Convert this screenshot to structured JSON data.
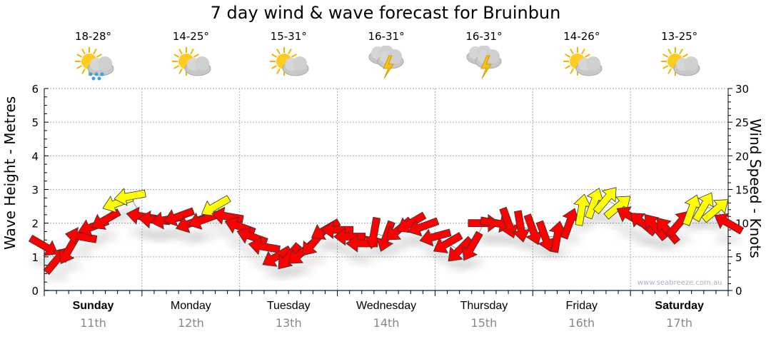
{
  "title": "7 day wind & wave forecast for Bruinbun",
  "days": [
    {
      "name": "Sunday",
      "date": "11th",
      "temp": "18-28°",
      "icon": "sun-cloud-rain-icon",
      "bold": true
    },
    {
      "name": "Monday",
      "date": "12th",
      "temp": "14-25°",
      "icon": "sun-cloud-icon",
      "bold": false
    },
    {
      "name": "Tuesday",
      "date": "13th",
      "temp": "15-31°",
      "icon": "sun-cloud-icon",
      "bold": false
    },
    {
      "name": "Wednesday",
      "date": "14th",
      "temp": "16-31°",
      "icon": "thunderstorm-icon",
      "bold": false
    },
    {
      "name": "Thursday",
      "date": "15th",
      "temp": "16-31°",
      "icon": "thunderstorm-icon",
      "bold": false
    },
    {
      "name": "Friday",
      "date": "16th",
      "temp": "14-26°",
      "icon": "sun-cloud-icon",
      "bold": false
    },
    {
      "name": "Saturday",
      "date": "17th",
      "temp": "13-25°",
      "icon": "sun-cloud-icon",
      "bold": true
    }
  ],
  "credit": "www.seabreeze.com.au",
  "colors": {
    "calm": "#ff0000",
    "strong": "#ffff00",
    "axis": "#1f4e79",
    "grid": "#aaaaaa"
  },
  "chart_data": {
    "type": "scatter",
    "title": "7 day wind & wave forecast for Bruinbun",
    "ylabel": "Wave Height - Metres",
    "y2label": "Wind Speed - Knots",
    "ylim": [
      0,
      6
    ],
    "y2lim": [
      0,
      30
    ],
    "yticks": [
      0,
      1,
      2,
      3,
      4,
      5,
      6
    ],
    "y2ticks": [
      0,
      5,
      10,
      15,
      20,
      25,
      30
    ],
    "x_unit": "hours from Sunday 00:00",
    "xlim": [
      0,
      168
    ],
    "strong_threshold_knots": 12,
    "wind": [
      {
        "h": 0,
        "kn": 6.6,
        "from": 300
      },
      {
        "h": 3,
        "kn": 4.5,
        "from": 220
      },
      {
        "h": 6,
        "kn": 6,
        "from": 30
      },
      {
        "h": 9,
        "kn": 8,
        "from": 100
      },
      {
        "h": 12,
        "kn": 9.5,
        "from": 70
      },
      {
        "h": 15,
        "kn": 10.5,
        "from": 60
      },
      {
        "h": 18,
        "kn": 13,
        "from": 70
      },
      {
        "h": 21,
        "kn": 14,
        "from": 80
      },
      {
        "h": 24,
        "kn": 11,
        "from": 100
      },
      {
        "h": 27,
        "kn": 10.5,
        "from": 95
      },
      {
        "h": 30,
        "kn": 10.5,
        "from": 80
      },
      {
        "h": 33,
        "kn": 11,
        "from": 70
      },
      {
        "h": 36,
        "kn": 10,
        "from": 70
      },
      {
        "h": 39,
        "kn": 10.5,
        "from": 70
      },
      {
        "h": 42,
        "kn": 12.5,
        "from": 60
      },
      {
        "h": 45,
        "kn": 11,
        "from": 100
      },
      {
        "h": 48,
        "kn": 9.5,
        "from": 110
      },
      {
        "h": 51,
        "kn": 8,
        "from": 110
      },
      {
        "h": 54,
        "kn": 6.5,
        "from": 100
      },
      {
        "h": 57,
        "kn": 5,
        "from": 60
      },
      {
        "h": 60,
        "kn": 5,
        "from": 40
      },
      {
        "h": 63,
        "kn": 5.5,
        "from": 50
      },
      {
        "h": 66,
        "kn": 7,
        "from": 40
      },
      {
        "h": 69,
        "kn": 9,
        "from": 60
      },
      {
        "h": 72,
        "kn": 9,
        "from": 90
      },
      {
        "h": 75,
        "kn": 8,
        "from": 90
      },
      {
        "h": 78,
        "kn": 7,
        "from": 90
      },
      {
        "h": 81,
        "kn": 8.5,
        "from": 10
      },
      {
        "h": 84,
        "kn": 8,
        "from": 20
      },
      {
        "h": 87,
        "kn": 9,
        "from": 50
      },
      {
        "h": 90,
        "kn": 10,
        "from": 60
      },
      {
        "h": 93,
        "kn": 9.5,
        "from": 70
      },
      {
        "h": 96,
        "kn": 8,
        "from": 75
      },
      {
        "h": 99,
        "kn": 7,
        "from": 60
      },
      {
        "h": 102,
        "kn": 6,
        "from": 45
      },
      {
        "h": 105,
        "kn": 6.5,
        "from": 30
      },
      {
        "h": 108,
        "kn": 10,
        "from": 270
      },
      {
        "h": 111,
        "kn": 10,
        "from": 280
      },
      {
        "h": 114,
        "kn": 10,
        "from": 340
      },
      {
        "h": 117,
        "kn": 9.5,
        "from": 350
      },
      {
        "h": 120,
        "kn": 9,
        "from": 340
      },
      {
        "h": 123,
        "kn": 8,
        "from": 340
      },
      {
        "h": 126,
        "kn": 8,
        "from": 190
      },
      {
        "h": 129,
        "kn": 10,
        "from": 200
      },
      {
        "h": 132,
        "kn": 12,
        "from": 190
      },
      {
        "h": 135,
        "kn": 13,
        "from": 200
      },
      {
        "h": 138,
        "kn": 13.5,
        "from": 220
      },
      {
        "h": 141,
        "kn": 12.5,
        "from": 230
      },
      {
        "h": 144,
        "kn": 11,
        "from": 120
      },
      {
        "h": 147,
        "kn": 10,
        "from": 130
      },
      {
        "h": 150,
        "kn": 9.5,
        "from": 140
      },
      {
        "h": 153,
        "kn": 9,
        "from": 140
      },
      {
        "h": 156,
        "kn": 10,
        "from": 220
      },
      {
        "h": 159,
        "kn": 12,
        "from": 200
      },
      {
        "h": 162,
        "kn": 12.5,
        "from": 210
      },
      {
        "h": 165,
        "kn": 12,
        "from": 230
      },
      {
        "h": 168,
        "kn": 10,
        "from": 120
      }
    ]
  }
}
